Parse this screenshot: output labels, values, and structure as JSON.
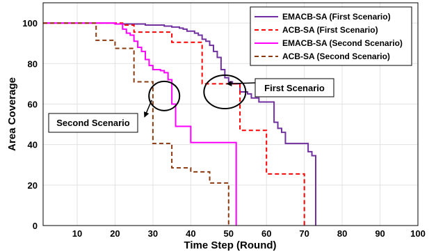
{
  "chart_data": {
    "type": "line",
    "title": "",
    "xlabel": "Time Step (Round)",
    "ylabel": "Area Coverage",
    "xlim": [
      1,
      100
    ],
    "ylim": [
      0,
      110
    ],
    "xticks": [
      10,
      20,
      30,
      40,
      50,
      60,
      70,
      80,
      90,
      100
    ],
    "yticks": [
      0,
      20,
      40,
      60,
      80,
      100
    ],
    "grid": true,
    "legend_position": "top-right",
    "series": [
      {
        "name": "EMACB-SA (First Scenario)",
        "color": "#7030a0",
        "style": "solid",
        "step": true,
        "x": [
          1,
          20,
          28,
          33,
          35,
          37,
          38,
          39,
          41,
          42,
          43,
          44,
          45,
          46,
          47,
          48,
          49,
          50,
          51,
          53,
          55,
          56,
          58,
          62,
          63,
          64,
          65,
          69,
          71,
          72,
          73
        ],
        "y": [
          100,
          99.5,
          99,
          98.5,
          98,
          97.5,
          97,
          96,
          95,
          94,
          92,
          91,
          89,
          86,
          83,
          77,
          73,
          71,
          70,
          66,
          65,
          63,
          61,
          51,
          48,
          46,
          40.5,
          40.5,
          36.5,
          34.5,
          0
        ]
      },
      {
        "name": "ACB-SA (First Scenario)",
        "color": "#ff0000",
        "style": "dashed",
        "step": true,
        "x": [
          1,
          22,
          25,
          30,
          35,
          43,
          48,
          53,
          60,
          67,
          70
        ],
        "y": [
          100,
          99,
          95.5,
          95.5,
          90.5,
          70,
          70,
          47,
          25.5,
          25.5,
          0
        ]
      },
      {
        "name": "EMACB-SA (Second Scenario)",
        "color": "#ff00ff",
        "style": "solid",
        "step": true,
        "x": [
          1,
          20,
          22,
          23,
          24,
          25,
          26,
          27,
          28,
          29,
          30,
          32,
          33,
          34,
          35,
          36,
          40,
          50,
          52
        ],
        "y": [
          100,
          99.5,
          97,
          95,
          94,
          91,
          88,
          86,
          82,
          79,
          77,
          76.5,
          75.5,
          72,
          60,
          49,
          41,
          41,
          0
        ]
      },
      {
        "name": "ACB-SA (Second Scenario)",
        "color": "#8b3a0f",
        "style": "dashed",
        "step": true,
        "x": [
          1,
          15,
          20,
          25,
          30,
          35,
          40,
          45,
          48,
          50
        ],
        "y": [
          100,
          91.5,
          87.5,
          71,
          40.5,
          28.5,
          26.5,
          21,
          21,
          0
        ]
      }
    ],
    "annotations": [
      {
        "text": "First Scenario",
        "ellipse_center": [
          49,
          66
        ],
        "arrow_target": [
          49,
          70
        ]
      },
      {
        "text": "Second Scenario",
        "ellipse_center": [
          33,
          64
        ],
        "arrow_target": [
          30,
          55
        ]
      }
    ]
  }
}
